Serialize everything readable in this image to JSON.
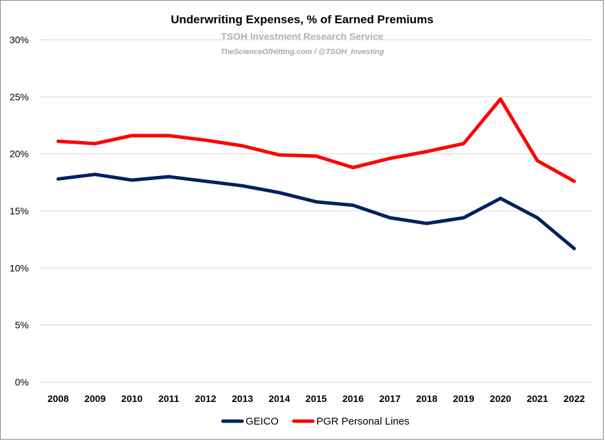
{
  "chart_data": {
    "type": "line",
    "title": "Underwriting Expenses, % of Earned Premiums",
    "subtitle": "TSOH Investment Research Service",
    "source": "TheScienceOfHitting.com / @TSOH_Investing",
    "categories": [
      "2008",
      "2009",
      "2010",
      "2011",
      "2012",
      "2013",
      "2014",
      "2015",
      "2016",
      "2017",
      "2018",
      "2019",
      "2020",
      "2021",
      "2022"
    ],
    "ylim": [
      0,
      30
    ],
    "yticks": [
      0,
      5,
      10,
      15,
      20,
      25,
      30
    ],
    "ytick_labels": [
      "0%",
      "5%",
      "10%",
      "15%",
      "20%",
      "25%",
      "30%"
    ],
    "grid": true,
    "legend_position": "bottom",
    "series": [
      {
        "name": "GEICO",
        "color": "#002060",
        "values": [
          17.8,
          18.2,
          17.7,
          18.0,
          17.6,
          17.2,
          16.6,
          15.8,
          15.5,
          14.4,
          13.9,
          14.4,
          16.1,
          14.4,
          11.7
        ]
      },
      {
        "name": "PGR Personal Lines",
        "color": "#ff0000",
        "values": [
          21.1,
          20.9,
          21.6,
          21.6,
          21.2,
          20.7,
          19.9,
          19.8,
          18.8,
          19.6,
          20.2,
          20.9,
          24.8,
          19.4,
          17.6
        ]
      }
    ]
  }
}
